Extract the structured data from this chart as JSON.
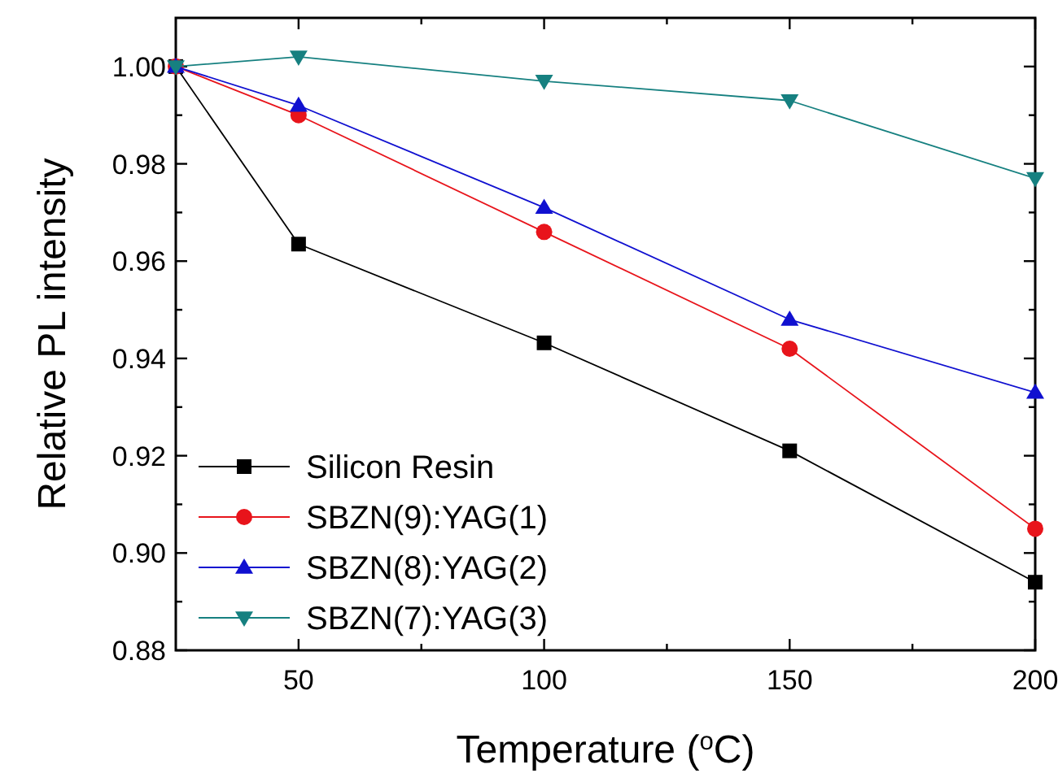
{
  "chart_data": {
    "type": "line",
    "xlabel": "Temperature ($^{o}$C)",
    "ylabel": "Relative PL intensity",
    "x": [
      25,
      50,
      100,
      150,
      200
    ],
    "series": [
      {
        "name": "Silicon Resin",
        "color": "#000000",
        "marker": "square",
        "values": [
          1.0,
          0.9635,
          0.9432,
          0.921,
          0.894
        ]
      },
      {
        "name": "SBZN(9):YAG(1)",
        "color": "#e8141b",
        "marker": "circle",
        "values": [
          1.0,
          0.99,
          0.966,
          0.942,
          0.905
        ]
      },
      {
        "name": "SBZN(8):YAG(2)",
        "color": "#1010d0",
        "marker": "triangle",
        "values": [
          1.0,
          0.992,
          0.971,
          0.948,
          0.933
        ]
      },
      {
        "name": "SBZN(7):YAG(3)",
        "color": "#168080",
        "marker": "triangle-down",
        "values": [
          1.0,
          1.002,
          0.997,
          0.993,
          0.977
        ]
      }
    ],
    "xlim": [
      25,
      200
    ],
    "xticks": [
      50,
      {
        "value": 75,
        "label": null
      },
      100,
      {
        "value": 125,
        "label": null
      },
      150,
      {
        "value": 175,
        "label": null
      },
      200
    ],
    "ylim": [
      0.88,
      1.01
    ],
    "yticks": [
      {
        "value": 0.88,
        "label": "0.88"
      },
      {
        "value": 0.89,
        "label": null
      },
      {
        "value": 0.9,
        "label": "0.90"
      },
      {
        "value": 0.91,
        "label": null
      },
      {
        "value": 0.92,
        "label": "0.92"
      },
      {
        "value": 0.93,
        "label": null
      },
      {
        "value": 0.94,
        "label": "0.94"
      },
      {
        "value": 0.95,
        "label": null
      },
      {
        "value": 0.96,
        "label": "0.96"
      },
      {
        "value": 0.97,
        "label": null
      },
      {
        "value": 0.98,
        "label": "0.98"
      },
      {
        "value": 0.99,
        "label": null
      },
      {
        "value": 1.0,
        "label": "1.00"
      }
    ],
    "legend": "bottom left",
    "grid": false
  }
}
